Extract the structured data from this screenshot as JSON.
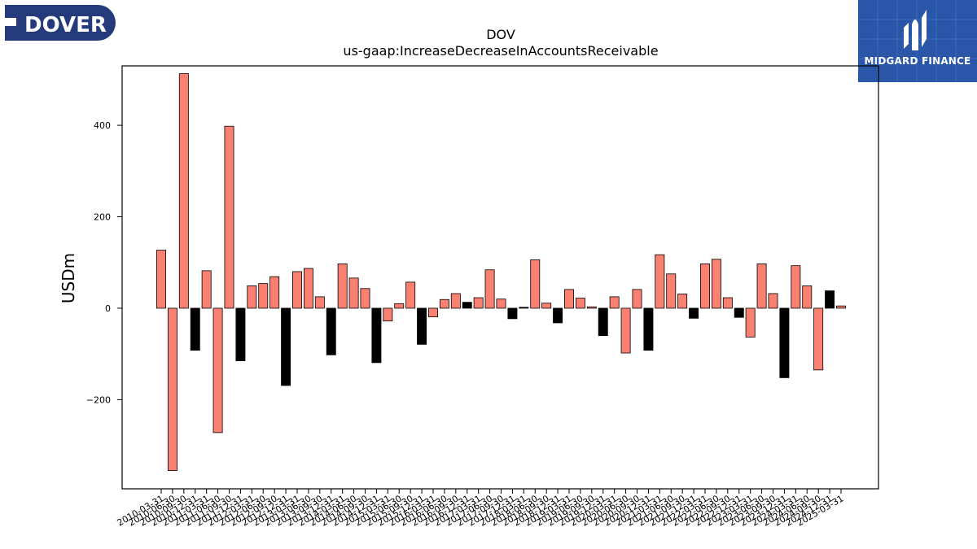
{
  "logos": {
    "left_text": "DOVER",
    "right_text": "MIDGARD FINANCE"
  },
  "colors": {
    "positive": "#fa8072",
    "negative": "#000000",
    "dover_brand": "#243a7a",
    "midgard_brand": "#2a56a8"
  },
  "chart_data": {
    "type": "bar",
    "title": "DOV",
    "subtitle": "us-gaap:IncreaseDecreaseInAccountsReceivable",
    "xlabel": "",
    "ylabel": "USDm",
    "ylim": [
      -395,
      530
    ],
    "yticks": [
      -200,
      0,
      200,
      400
    ],
    "grid": false,
    "legend": "none",
    "categories": [
      "2010-03-31",
      "2010-06-30",
      "2010-09-30",
      "2010-12-31",
      "2011-03-31",
      "2011-06-30",
      "2011-09-30",
      "2011-12-31",
      "2012-03-31",
      "2012-06-30",
      "2012-09-30",
      "2012-12-31",
      "2013-03-31",
      "2013-06-30",
      "2013-09-30",
      "2013-12-31",
      "2014-03-31",
      "2014-06-30",
      "2014-09-30",
      "2014-12-31",
      "2015-03-31",
      "2015-06-30",
      "2015-09-30",
      "2015-12-31",
      "2016-03-31",
      "2016-06-30",
      "2016-09-30",
      "2016-12-31",
      "2017-03-31",
      "2017-06-30",
      "2017-09-30",
      "2017-12-31",
      "2018-03-31",
      "2018-06-30",
      "2018-09-30",
      "2018-12-31",
      "2019-03-31",
      "2019-06-30",
      "2019-09-30",
      "2019-12-31",
      "2020-03-31",
      "2020-06-30",
      "2020-09-30",
      "2020-12-31",
      "2021-03-31",
      "2021-06-30",
      "2021-09-30",
      "2021-12-31",
      "2022-03-31",
      "2022-06-30",
      "2022-09-30",
      "2022-12-31",
      "2023-03-31",
      "2023-06-30",
      "2023-09-30",
      "2023-12-31",
      "2024-03-31",
      "2024-06-30",
      "2024-09-30",
      "2024-12-31",
      "2025-03-31"
    ],
    "values": [
      127,
      -355,
      513,
      -92,
      82,
      -272,
      398,
      -115,
      49,
      54,
      69,
      -169,
      80,
      87,
      25,
      -102,
      97,
      66,
      43,
      -119,
      -28,
      10,
      57,
      -79,
      -19,
      19,
      32,
      13,
      23,
      84,
      20,
      -23,
      2,
      106,
      11,
      -32,
      41,
      22,
      3,
      -60,
      25,
      -98,
      41,
      -92,
      117,
      75,
      31,
      -22,
      97,
      107,
      23,
      -20,
      -63,
      97,
      32,
      -152,
      93,
      49,
      -135,
      38,
      5
    ],
    "bar_colors": [
      "salmon",
      "salmon",
      "salmon",
      "black",
      "salmon",
      "salmon",
      "salmon",
      "black",
      "salmon",
      "salmon",
      "salmon",
      "black",
      "salmon",
      "salmon",
      "salmon",
      "black",
      "salmon",
      "salmon",
      "salmon",
      "black",
      "salmon",
      "salmon",
      "salmon",
      "black",
      "salmon",
      "salmon",
      "salmon",
      "black",
      "salmon",
      "salmon",
      "salmon",
      "black",
      "black",
      "salmon",
      "salmon",
      "black",
      "salmon",
      "salmon",
      "salmon",
      "black",
      "salmon",
      "salmon",
      "salmon",
      "black",
      "salmon",
      "salmon",
      "salmon",
      "black",
      "salmon",
      "salmon",
      "salmon",
      "black",
      "salmon",
      "salmon",
      "salmon",
      "black",
      "salmon",
      "salmon",
      "salmon",
      "black",
      "salmon"
    ]
  }
}
